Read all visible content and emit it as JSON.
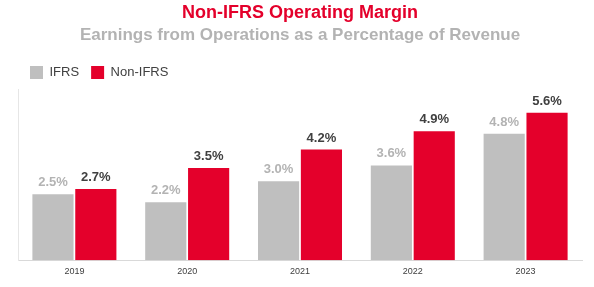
{
  "chart_data": {
    "type": "bar",
    "title": "Non-IFRS Operating Margin",
    "subtitle": "Earnings from Operations as a Percentage of Revenue",
    "categories": [
      "2019",
      "2020",
      "2021",
      "2022",
      "2023"
    ],
    "series": [
      {
        "name": "IFRS",
        "color": "#bfbfbf",
        "values": [
          2.5,
          2.2,
          3.0,
          3.6,
          4.8
        ],
        "value_labels": [
          "2.5%",
          "2.2%",
          "3.0%",
          "3.6%",
          "4.8%"
        ]
      },
      {
        "name": "Non-IFRS",
        "color": "#e4002b",
        "values": [
          2.7,
          3.5,
          4.2,
          4.9,
          5.6
        ],
        "value_labels": [
          "2.7%",
          "3.5%",
          "4.2%",
          "4.9%",
          "5.6%"
        ]
      }
    ],
    "ylim": [
      0,
      6.5
    ],
    "grid": false,
    "legend": "top-left",
    "data_labels": true,
    "tick_labels": "x"
  }
}
